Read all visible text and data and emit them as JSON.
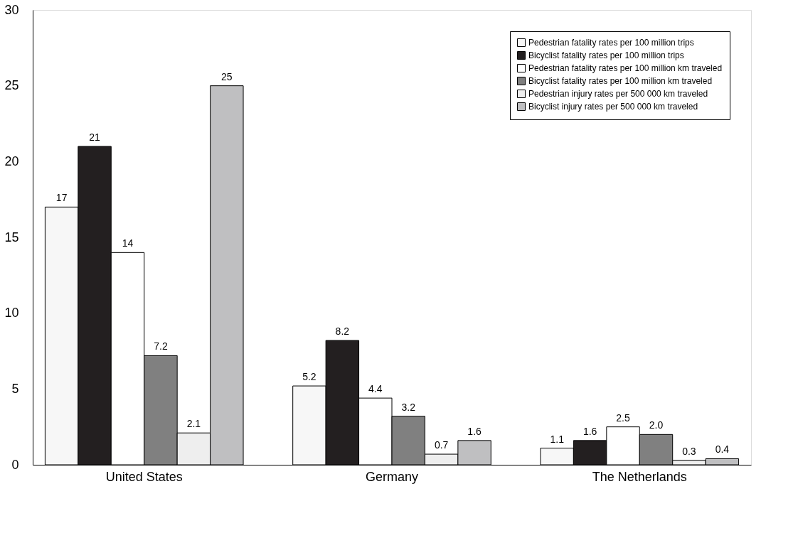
{
  "chart_data": {
    "type": "bar",
    "categories": [
      "United States",
      "Germany",
      "The Netherlands"
    ],
    "series": [
      {
        "name": "Pedestrian fatality rates per 100 million trips",
        "color": "#f7f7f7",
        "values": [
          17,
          5.2,
          1.1
        ],
        "value_labels": [
          "17",
          "5.2",
          "1.1"
        ]
      },
      {
        "name": "Bicyclist fatality rates per 100 million trips",
        "color": "#231f20",
        "values": [
          21,
          8.2,
          1.6
        ],
        "value_labels": [
          "21",
          "8.2",
          "1.6"
        ]
      },
      {
        "name": "Pedestrian fatality rates per 100 million km traveled",
        "color": "#ffffff",
        "values": [
          14,
          4.4,
          2.5
        ],
        "value_labels": [
          "14",
          "4.4",
          "2.5"
        ]
      },
      {
        "name": "Bicyclist fatality rates per 100 million km traveled",
        "color": "#808080",
        "values": [
          7.2,
          3.2,
          2.0
        ],
        "value_labels": [
          "7.2",
          "3.2",
          "2.0"
        ]
      },
      {
        "name": "Pedestrian injury rates per 500 000 km traveled",
        "color": "#eeeeee",
        "values": [
          2.1,
          0.7,
          0.3
        ],
        "value_labels": [
          "2.1",
          "0.7",
          "0.3"
        ]
      },
      {
        "name": "Bicyclist injury rates per 500 000 km traveled",
        "color": "#bfbfc1",
        "values": [
          25,
          1.6,
          0.4
        ],
        "value_labels": [
          "25",
          "1.6",
          "0.4"
        ]
      }
    ],
    "ylim": [
      0,
      30
    ],
    "yticks": [
      0,
      5,
      10,
      15,
      20,
      25,
      30
    ],
    "grid": false,
    "legend": "top right"
  }
}
